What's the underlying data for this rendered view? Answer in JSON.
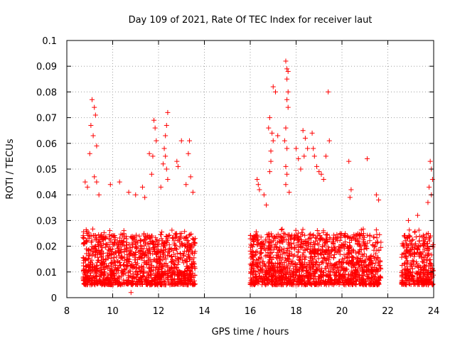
{
  "chart_data": {
    "type": "scatter",
    "title": "Day 109 of 2021, Rate Of TEC Index for receiver laut",
    "xlabel": "GPS time / hours",
    "ylabel": "ROTI / TECUs",
    "xlim": [
      8,
      24
    ],
    "ylim": [
      0,
      0.1
    ],
    "x_ticks": [
      "8",
      "10",
      "12",
      "14",
      "16",
      "18",
      "20",
      "22",
      "24"
    ],
    "y_ticks": [
      "0",
      "0.01",
      "0.02",
      "0.03",
      "0.04",
      "0.05",
      "0.06",
      "0.07",
      "0.08",
      "0.09",
      "0.1"
    ],
    "grid": true,
    "marker": "+",
    "color": "#ff0000",
    "series": [
      {
        "name": "ROTI",
        "segments": [
          {
            "start": 8.7,
            "end": 13.6
          },
          {
            "start": 16.0,
            "end": 21.7
          },
          {
            "start": 22.6,
            "end": 24.0
          }
        ],
        "base_range": [
          0.005,
          0.025
        ],
        "points": [
          {
            "x": 9.1,
            "y": 0.077
          },
          {
            "x": 9.2,
            "y": 0.074
          },
          {
            "x": 9.25,
            "y": 0.071
          },
          {
            "x": 9.05,
            "y": 0.067
          },
          {
            "x": 9.15,
            "y": 0.063
          },
          {
            "x": 9.3,
            "y": 0.059
          },
          {
            "x": 9.0,
            "y": 0.056
          },
          {
            "x": 9.2,
            "y": 0.047
          },
          {
            "x": 9.3,
            "y": 0.045
          },
          {
            "x": 8.9,
            "y": 0.043
          },
          {
            "x": 8.8,
            "y": 0.045
          },
          {
            "x": 9.4,
            "y": 0.04
          },
          {
            "x": 9.9,
            "y": 0.044
          },
          {
            "x": 10.3,
            "y": 0.045
          },
          {
            "x": 10.7,
            "y": 0.041
          },
          {
            "x": 11.0,
            "y": 0.04
          },
          {
            "x": 11.3,
            "y": 0.043
          },
          {
            "x": 11.4,
            "y": 0.039
          },
          {
            "x": 11.8,
            "y": 0.069
          },
          {
            "x": 11.85,
            "y": 0.066
          },
          {
            "x": 11.9,
            "y": 0.061
          },
          {
            "x": 11.75,
            "y": 0.055
          },
          {
            "x": 11.6,
            "y": 0.056
          },
          {
            "x": 11.7,
            "y": 0.048
          },
          {
            "x": 12.4,
            "y": 0.072
          },
          {
            "x": 12.35,
            "y": 0.067
          },
          {
            "x": 12.3,
            "y": 0.063
          },
          {
            "x": 12.25,
            "y": 0.058
          },
          {
            "x": 12.3,
            "y": 0.055
          },
          {
            "x": 12.2,
            "y": 0.052
          },
          {
            "x": 12.35,
            "y": 0.05
          },
          {
            "x": 12.4,
            "y": 0.046
          },
          {
            "x": 12.1,
            "y": 0.043
          },
          {
            "x": 12.8,
            "y": 0.053
          },
          {
            "x": 12.85,
            "y": 0.051
          },
          {
            "x": 13.0,
            "y": 0.061
          },
          {
            "x": 13.35,
            "y": 0.061
          },
          {
            "x": 13.3,
            "y": 0.056
          },
          {
            "x": 13.4,
            "y": 0.047
          },
          {
            "x": 13.2,
            "y": 0.044
          },
          {
            "x": 13.5,
            "y": 0.041
          },
          {
            "x": 10.8,
            "y": 0.002
          },
          {
            "x": 16.3,
            "y": 0.046
          },
          {
            "x": 16.35,
            "y": 0.044
          },
          {
            "x": 16.4,
            "y": 0.042
          },
          {
            "x": 16.6,
            "y": 0.04
          },
          {
            "x": 16.7,
            "y": 0.036
          },
          {
            "x": 16.8,
            "y": 0.066
          },
          {
            "x": 16.85,
            "y": 0.07
          },
          {
            "x": 16.95,
            "y": 0.064
          },
          {
            "x": 17.0,
            "y": 0.061
          },
          {
            "x": 16.9,
            "y": 0.057
          },
          {
            "x": 16.9,
            "y": 0.053
          },
          {
            "x": 16.85,
            "y": 0.049
          },
          {
            "x": 17.0,
            "y": 0.082
          },
          {
            "x": 17.1,
            "y": 0.08
          },
          {
            "x": 17.2,
            "y": 0.063
          },
          {
            "x": 17.55,
            "y": 0.092
          },
          {
            "x": 17.6,
            "y": 0.089
          },
          {
            "x": 17.65,
            "y": 0.088
          },
          {
            "x": 17.6,
            "y": 0.085
          },
          {
            "x": 17.65,
            "y": 0.08
          },
          {
            "x": 17.6,
            "y": 0.077
          },
          {
            "x": 17.65,
            "y": 0.074
          },
          {
            "x": 17.55,
            "y": 0.066
          },
          {
            "x": 17.5,
            "y": 0.061
          },
          {
            "x": 17.6,
            "y": 0.058
          },
          {
            "x": 17.55,
            "y": 0.051
          },
          {
            "x": 17.6,
            "y": 0.048
          },
          {
            "x": 17.55,
            "y": 0.044
          },
          {
            "x": 17.7,
            "y": 0.041
          },
          {
            "x": 18.0,
            "y": 0.058
          },
          {
            "x": 18.1,
            "y": 0.054
          },
          {
            "x": 18.2,
            "y": 0.05
          },
          {
            "x": 18.3,
            "y": 0.065
          },
          {
            "x": 18.4,
            "y": 0.062
          },
          {
            "x": 18.5,
            "y": 0.058
          },
          {
            "x": 18.35,
            "y": 0.055
          },
          {
            "x": 18.7,
            "y": 0.064
          },
          {
            "x": 18.75,
            "y": 0.058
          },
          {
            "x": 18.8,
            "y": 0.055
          },
          {
            "x": 18.9,
            "y": 0.051
          },
          {
            "x": 19.0,
            "y": 0.049
          },
          {
            "x": 19.1,
            "y": 0.048
          },
          {
            "x": 19.2,
            "y": 0.046
          },
          {
            "x": 19.4,
            "y": 0.08
          },
          {
            "x": 19.45,
            "y": 0.061
          },
          {
            "x": 19.3,
            "y": 0.055
          },
          {
            "x": 20.3,
            "y": 0.053
          },
          {
            "x": 20.4,
            "y": 0.042
          },
          {
            "x": 20.35,
            "y": 0.039
          },
          {
            "x": 21.1,
            "y": 0.054
          },
          {
            "x": 21.5,
            "y": 0.04
          },
          {
            "x": 21.6,
            "y": 0.038
          },
          {
            "x": 23.85,
            "y": 0.053
          },
          {
            "x": 23.9,
            "y": 0.05
          },
          {
            "x": 23.95,
            "y": 0.046
          },
          {
            "x": 23.8,
            "y": 0.043
          },
          {
            "x": 23.9,
            "y": 0.04
          },
          {
            "x": 23.75,
            "y": 0.037
          },
          {
            "x": 23.95,
            "y": 0.005
          },
          {
            "x": 22.9,
            "y": 0.03
          },
          {
            "x": 23.3,
            "y": 0.032
          }
        ]
      }
    ]
  }
}
